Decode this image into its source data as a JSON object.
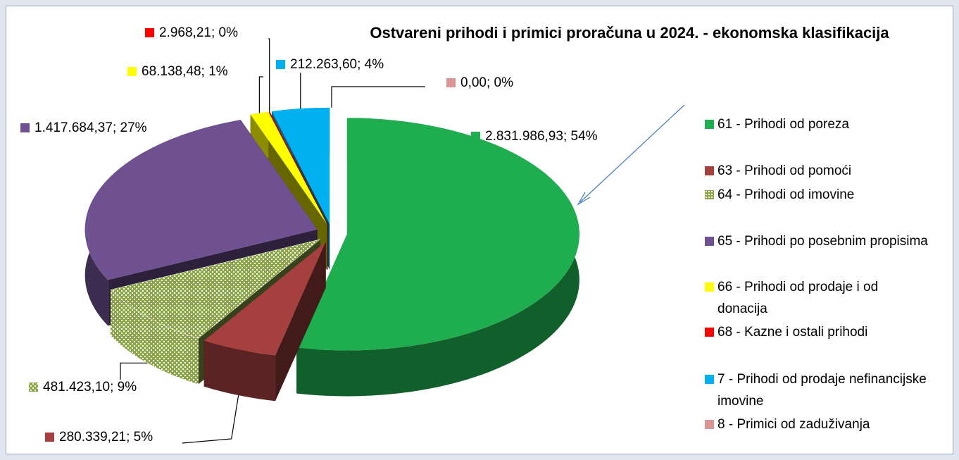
{
  "chart_data": {
    "type": "pie",
    "title": "Ostvareni prihodi i primici proračuna u 2024. - ekonomska klasifikacija",
    "categories": [
      "61 - Prihodi od poreza",
      "63 - Prihodi od pomoći",
      "64 - Prihodi od imovine",
      "65 - Prihodi po posebnim propisima",
      "66 - Prihodi od prodaje i od donacija",
      "68 - Kazne i ostali prihodi",
      "7 - Prihodi od prodaje nefinancijske imovine",
      "8 - Primici od zaduživanja"
    ],
    "values": [
      2831986.93,
      280339.21,
      481423.1,
      1417684.37,
      68138.48,
      2968.21,
      212263.6,
      0.0
    ],
    "value_labels": [
      "2.831.986,93; 54%",
      "280.339,21; 5%",
      "481.423,10; 9%",
      "1.417.684,37; 27%",
      "68.138,48; 1%",
      "2.968,21; 0%",
      "212.263,60; 4%",
      "0,00; 0%"
    ],
    "colors": [
      "#1fae4f",
      "#a5403f",
      "#8aa645",
      "#6f5192",
      "#ffff00",
      "#ff0000",
      "#00b0f0",
      "#d99694"
    ],
    "legend": "right"
  }
}
